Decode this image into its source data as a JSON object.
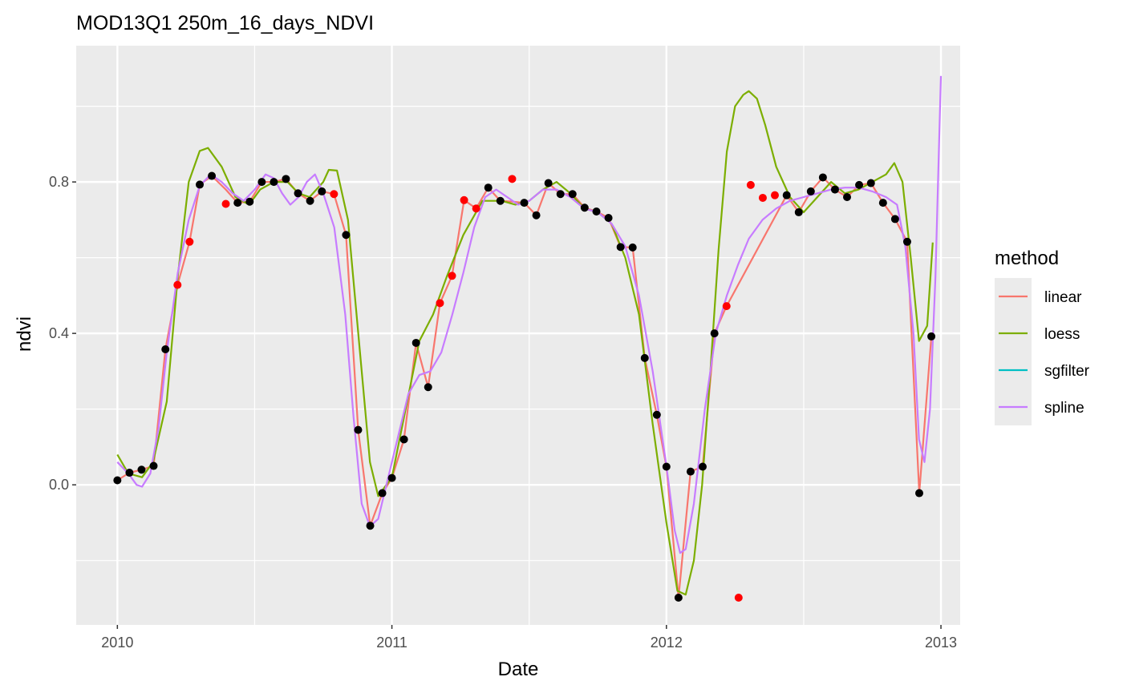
{
  "chart_data": {
    "type": "line",
    "title": "MOD13Q1 250m_16_days_NDVI",
    "xlabel": "Date",
    "ylabel": "ndvi",
    "x_ticks": [
      "2010",
      "2011",
      "2012",
      "2013"
    ],
    "y_ticks": [
      "0.0",
      "0.4",
      "0.8"
    ],
    "xlim": [
      2009.85,
      2013.07
    ],
    "ylim": [
      -0.37,
      1.16
    ],
    "grid": true,
    "legend": {
      "title": "method",
      "placement": "right",
      "entries": [
        {
          "name": "linear",
          "color": "#F8766D"
        },
        {
          "name": "loess",
          "color": "#7CAE00"
        },
        {
          "name": "sgfilter",
          "color": "#00BFC4"
        },
        {
          "name": "spline",
          "color": "#C77CFF"
        }
      ]
    },
    "observed_points": {
      "color": "#000000",
      "x": [
        2010.0,
        2010.044,
        2010.088,
        2010.132,
        2010.175,
        2010.3,
        2010.344,
        2010.438,
        2010.482,
        2010.526,
        2010.57,
        2010.614,
        2010.658,
        2010.702,
        2010.745,
        2010.833,
        2010.877,
        2010.921,
        2010.965,
        2011.0,
        2011.044,
        2011.088,
        2011.132,
        2011.351,
        2011.395,
        2011.482,
        2011.526,
        2011.57,
        2011.614,
        2011.658,
        2011.702,
        2011.745,
        2011.789,
        2011.833,
        2011.877,
        2011.921,
        2011.965,
        2012.0,
        2012.044,
        2012.088,
        2012.132,
        2012.175,
        2012.438,
        2012.482,
        2012.526,
        2012.57,
        2012.614,
        2012.658,
        2012.702,
        2012.745,
        2012.789,
        2012.833,
        2012.877,
        2012.921,
        2012.965
      ],
      "y": [
        0.012,
        0.032,
        0.04,
        0.05,
        0.358,
        0.793,
        0.816,
        0.745,
        0.748,
        0.8,
        0.8,
        0.808,
        0.77,
        0.75,
        0.775,
        0.66,
        0.145,
        -0.108,
        -0.022,
        0.018,
        0.12,
        0.375,
        0.258,
        0.785,
        0.75,
        0.745,
        0.712,
        0.797,
        0.768,
        0.768,
        0.732,
        0.722,
        0.705,
        0.628,
        0.627,
        0.335,
        0.185,
        0.048,
        -0.298,
        0.035,
        0.048,
        0.4,
        0.765,
        0.72,
        0.775,
        0.812,
        0.78,
        0.76,
        0.792,
        0.797,
        0.745,
        0.702,
        0.642,
        -0.022,
        0.392
      ]
    },
    "flagged_points": {
      "color": "#FF0000",
      "x": [
        2010.219,
        2010.263,
        2010.395,
        2010.789,
        2011.175,
        2011.219,
        2011.263,
        2011.307,
        2011.438,
        2012.219,
        2012.263,
        2012.307,
        2012.351,
        2012.395
      ],
      "y": [
        0.528,
        0.642,
        0.742,
        0.768,
        0.48,
        0.552,
        0.752,
        0.73,
        0.808,
        0.472,
        -0.298,
        0.792,
        0.758,
        0.765
      ]
    },
    "series": [
      {
        "name": "linear",
        "color": "#F8766D",
        "x": [
          2010.0,
          2010.044,
          2010.088,
          2010.132,
          2010.175,
          2010.219,
          2010.263,
          2010.3,
          2010.344,
          2010.395,
          2010.438,
          2010.482,
          2010.526,
          2010.57,
          2010.614,
          2010.658,
          2010.702,
          2010.745,
          2010.789,
          2010.833,
          2010.877,
          2010.921,
          2010.965,
          2011.0,
          2011.044,
          2011.088,
          2011.132,
          2011.175,
          2011.219,
          2011.263,
          2011.307,
          2011.351,
          2011.395,
          2011.438,
          2011.482,
          2011.526,
          2011.57,
          2011.614,
          2011.658,
          2011.702,
          2011.745,
          2011.789,
          2011.833,
          2011.877,
          2011.921,
          2011.965,
          2012.0,
          2012.044,
          2012.088,
          2012.132,
          2012.175,
          2012.219,
          2012.438,
          2012.482,
          2012.526,
          2012.57,
          2012.614,
          2012.658,
          2012.702,
          2012.745,
          2012.789,
          2012.833,
          2012.877,
          2012.921,
          2012.965
        ],
        "y": [
          0.012,
          0.032,
          0.04,
          0.05,
          0.358,
          0.528,
          0.642,
          0.793,
          0.816,
          0.78,
          0.745,
          0.748,
          0.8,
          0.8,
          0.808,
          0.77,
          0.75,
          0.775,
          0.768,
          0.66,
          0.145,
          -0.108,
          -0.022,
          0.018,
          0.12,
          0.375,
          0.258,
          0.48,
          0.552,
          0.752,
          0.73,
          0.785,
          0.75,
          0.748,
          0.745,
          0.712,
          0.797,
          0.768,
          0.768,
          0.732,
          0.722,
          0.705,
          0.628,
          0.627,
          0.335,
          0.185,
          0.048,
          -0.298,
          0.035,
          0.048,
          0.4,
          0.472,
          0.765,
          0.72,
          0.775,
          0.812,
          0.78,
          0.76,
          0.792,
          0.797,
          0.745,
          0.702,
          0.642,
          -0.022,
          0.392
        ]
      },
      {
        "name": "loess",
        "color": "#7CAE00",
        "x": [
          2010.0,
          2010.04,
          2010.09,
          2010.13,
          2010.18,
          2010.22,
          2010.26,
          2010.3,
          2010.33,
          2010.38,
          2010.43,
          2010.48,
          2010.52,
          2010.57,
          2010.62,
          2010.66,
          2010.7,
          2010.75,
          2010.77,
          2010.8,
          2010.84,
          2010.88,
          2010.92,
          2010.95,
          2011.0,
          2011.05,
          2011.1,
          2011.15,
          2011.2,
          2011.26,
          2011.33,
          2011.4,
          2011.45,
          2011.5,
          2011.55,
          2011.6,
          2011.65,
          2011.7,
          2011.75,
          2011.8,
          2011.85,
          2011.9,
          2011.95,
          2012.0,
          2012.04,
          2012.07,
          2012.1,
          2012.13,
          2012.16,
          2012.19,
          2012.22,
          2012.25,
          2012.28,
          2012.3,
          2012.33,
          2012.36,
          2012.4,
          2012.45,
          2012.5,
          2012.55,
          2012.6,
          2012.65,
          2012.7,
          2012.75,
          2012.8,
          2012.83,
          2012.86,
          2012.89,
          2012.92,
          2012.95,
          2012.97
        ],
        "y": [
          0.08,
          0.03,
          0.02,
          0.06,
          0.22,
          0.55,
          0.8,
          0.882,
          0.89,
          0.84,
          0.76,
          0.74,
          0.78,
          0.8,
          0.8,
          0.77,
          0.76,
          0.8,
          0.832,
          0.83,
          0.7,
          0.38,
          0.06,
          -0.03,
          0.02,
          0.2,
          0.38,
          0.45,
          0.55,
          0.66,
          0.75,
          0.75,
          0.74,
          0.75,
          0.78,
          0.8,
          0.77,
          0.73,
          0.72,
          0.69,
          0.6,
          0.45,
          0.16,
          -0.1,
          -0.28,
          -0.29,
          -0.2,
          0.0,
          0.3,
          0.62,
          0.88,
          1.0,
          1.03,
          1.04,
          1.02,
          0.95,
          0.84,
          0.76,
          0.72,
          0.76,
          0.8,
          0.77,
          0.78,
          0.8,
          0.82,
          0.85,
          0.8,
          0.6,
          0.38,
          0.42,
          0.64
        ]
      },
      {
        "name": "spline",
        "color": "#C77CFF",
        "x": [
          2010.0,
          2010.04,
          2010.07,
          2010.09,
          2010.12,
          2010.15,
          2010.18,
          2010.22,
          2010.26,
          2010.3,
          2010.34,
          2010.38,
          2010.42,
          2010.46,
          2010.5,
          2010.54,
          2010.57,
          2010.6,
          2010.63,
          2010.66,
          2010.69,
          2010.72,
          2010.75,
          2010.79,
          2010.83,
          2010.86,
          2010.89,
          2010.92,
          2010.95,
          2010.98,
          2011.02,
          2011.06,
          2011.1,
          2011.14,
          2011.18,
          2011.22,
          2011.26,
          2011.3,
          2011.34,
          2011.38,
          2011.42,
          2011.46,
          2011.5,
          2011.55,
          2011.6,
          2011.65,
          2011.7,
          2011.75,
          2011.8,
          2011.85,
          2011.9,
          2011.95,
          2012.0,
          2012.03,
          2012.05,
          2012.07,
          2012.1,
          2012.14,
          2012.18,
          2012.22,
          2012.26,
          2012.3,
          2012.35,
          2012.4,
          2012.45,
          2012.5,
          2012.55,
          2012.6,
          2012.65,
          2012.7,
          2012.75,
          2012.8,
          2012.84,
          2012.87,
          2012.9,
          2012.92,
          2012.94,
          2012.96,
          2012.98,
          2013.0
        ],
        "y": [
          0.06,
          0.03,
          0.0,
          -0.005,
          0.03,
          0.15,
          0.35,
          0.56,
          0.7,
          0.79,
          0.82,
          0.8,
          0.77,
          0.75,
          0.78,
          0.82,
          0.81,
          0.77,
          0.74,
          0.76,
          0.8,
          0.82,
          0.77,
          0.68,
          0.45,
          0.18,
          -0.05,
          -0.11,
          -0.09,
          0.0,
          0.12,
          0.24,
          0.29,
          0.3,
          0.35,
          0.45,
          0.56,
          0.68,
          0.76,
          0.78,
          0.76,
          0.74,
          0.75,
          0.78,
          0.78,
          0.76,
          0.73,
          0.72,
          0.69,
          0.63,
          0.5,
          0.3,
          0.05,
          -0.12,
          -0.18,
          -0.17,
          -0.05,
          0.2,
          0.4,
          0.5,
          0.58,
          0.65,
          0.7,
          0.73,
          0.75,
          0.76,
          0.77,
          0.78,
          0.785,
          0.785,
          0.775,
          0.76,
          0.74,
          0.63,
          0.4,
          0.12,
          0.06,
          0.2,
          0.55,
          1.08
        ]
      }
    ]
  }
}
